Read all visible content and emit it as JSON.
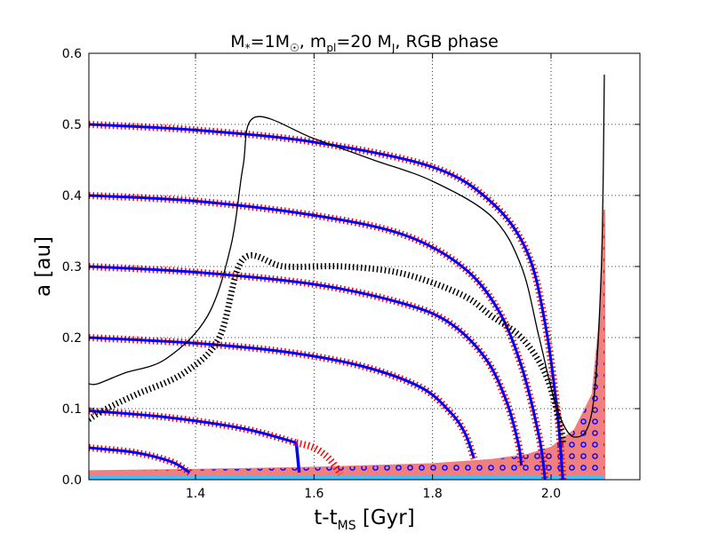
{
  "chart_data": {
    "type": "line",
    "title": {
      "prefix": "M",
      "star_sub": "*",
      "mid1": "=1M",
      "sun_sub": "☉",
      "mid2": ", m",
      "pl_sub": "pl",
      "mid3": "=20 M",
      "j_sub": "J",
      "suffix": ", RGB phase"
    },
    "xlabel": {
      "main": "t-t",
      "sub": "MS",
      "suffix": " [Gyr]"
    },
    "ylabel": "a [au]",
    "xlim": [
      1.22,
      2.15
    ],
    "ylim": [
      0.0,
      0.6
    ],
    "xticks": [
      1.4,
      1.6,
      1.8,
      2.0
    ],
    "xtick_labels": [
      "1.4",
      "1.6",
      "1.8",
      "2.0"
    ],
    "yticks": [
      0.0,
      0.1,
      0.2,
      0.3,
      0.4,
      0.5,
      0.6
    ],
    "ytick_labels": [
      "0.0",
      "0.1",
      "0.2",
      "0.3",
      "0.4",
      "0.5",
      "0.6"
    ],
    "grid": true,
    "colors": {
      "track_blue": "#0000ff",
      "track_red": "#ff0000",
      "envelope": "#f08080",
      "core": "#40c0ff",
      "marker": "#0000ff",
      "black": "#000000"
    },
    "series": [
      {
        "name": "orbit a0=0.5",
        "style": "blue-red-dotted",
        "x": [
          1.22,
          1.4,
          1.6,
          1.8,
          1.9,
          1.96,
          1.99,
          2.01,
          2.02
        ],
        "y": [
          0.5,
          0.492,
          0.475,
          0.44,
          0.39,
          0.32,
          0.22,
          0.1,
          0.0
        ]
      },
      {
        "name": "orbit a0=0.4",
        "style": "blue-red-dotted",
        "x": [
          1.22,
          1.4,
          1.6,
          1.75,
          1.85,
          1.91,
          1.95,
          1.98,
          1.99
        ],
        "y": [
          0.4,
          0.392,
          0.372,
          0.345,
          0.3,
          0.24,
          0.16,
          0.06,
          0.0
        ]
      },
      {
        "name": "orbit a0=0.3",
        "style": "blue-red-dotted",
        "x": [
          1.22,
          1.4,
          1.6,
          1.75,
          1.83,
          1.89,
          1.925,
          1.945,
          1.95
        ],
        "y": [
          0.3,
          0.292,
          0.275,
          0.248,
          0.22,
          0.17,
          0.11,
          0.05,
          0.02
        ]
      },
      {
        "name": "orbit a0=0.2",
        "style": "blue-red-dotted",
        "x": [
          1.22,
          1.4,
          1.55,
          1.68,
          1.78,
          1.83,
          1.855,
          1.87
        ],
        "y": [
          0.2,
          0.192,
          0.18,
          0.16,
          0.13,
          0.095,
          0.065,
          0.03
        ]
      },
      {
        "name": "orbit a0=0.1",
        "style": "blue-red-dotted",
        "x": [
          1.22,
          1.35,
          1.48,
          1.57
        ],
        "y": [
          0.097,
          0.088,
          0.072,
          0.052
        ]
      },
      {
        "name": "orbit a0=0.1 plunge",
        "style": "blue",
        "x": [
          1.57,
          1.575
        ],
        "y": [
          0.052,
          0.01
        ]
      },
      {
        "name": "orbit a0=0.1 red tail",
        "style": "red-dotted",
        "x": [
          1.57,
          1.6,
          1.625,
          1.645
        ],
        "y": [
          0.052,
          0.045,
          0.03,
          0.008
        ]
      },
      {
        "name": "orbit a0=0.05",
        "style": "blue-red-dotted",
        "x": [
          1.22,
          1.3,
          1.36,
          1.39
        ],
        "y": [
          0.045,
          0.038,
          0.025,
          0.01
        ]
      },
      {
        "name": "black solid curve",
        "style": "black-solid",
        "x": [
          1.22,
          1.235,
          1.28,
          1.35,
          1.42,
          1.46,
          1.48,
          1.5,
          1.6,
          1.7,
          1.8,
          1.9,
          1.95,
          1.98,
          2.01,
          2.04,
          2.07,
          2.085,
          2.09
        ],
        "y": [
          0.135,
          0.135,
          0.15,
          0.17,
          0.23,
          0.33,
          0.44,
          0.51,
          0.48,
          0.45,
          0.42,
          0.37,
          0.3,
          0.2,
          0.1,
          0.06,
          0.1,
          0.3,
          0.57
        ]
      },
      {
        "name": "black dotted curve",
        "style": "black-dotted",
        "x": [
          1.22,
          1.25,
          1.3,
          1.38,
          1.44,
          1.48,
          1.55,
          1.65,
          1.75,
          1.85,
          1.9,
          1.95,
          1.99,
          2.015,
          2.02
        ],
        "y": [
          0.085,
          0.1,
          0.12,
          0.15,
          0.2,
          0.31,
          0.3,
          0.3,
          0.29,
          0.26,
          0.23,
          0.2,
          0.15,
          0.08,
          0.05
        ]
      },
      {
        "name": "stellar radius envelope",
        "style": "filled",
        "x": [
          1.22,
          1.4,
          1.6,
          1.8,
          1.9,
          1.96,
          2.0,
          2.04,
          2.07,
          2.085,
          2.09,
          2.09
        ],
        "y": [
          0.012,
          0.014,
          0.017,
          0.022,
          0.028,
          0.035,
          0.045,
          0.07,
          0.12,
          0.25,
          0.38,
          0.0
        ]
      },
      {
        "name": "core",
        "style": "filled-cyan",
        "x": [
          1.22,
          2.09
        ],
        "y": [
          0.006,
          0.006
        ]
      }
    ]
  }
}
